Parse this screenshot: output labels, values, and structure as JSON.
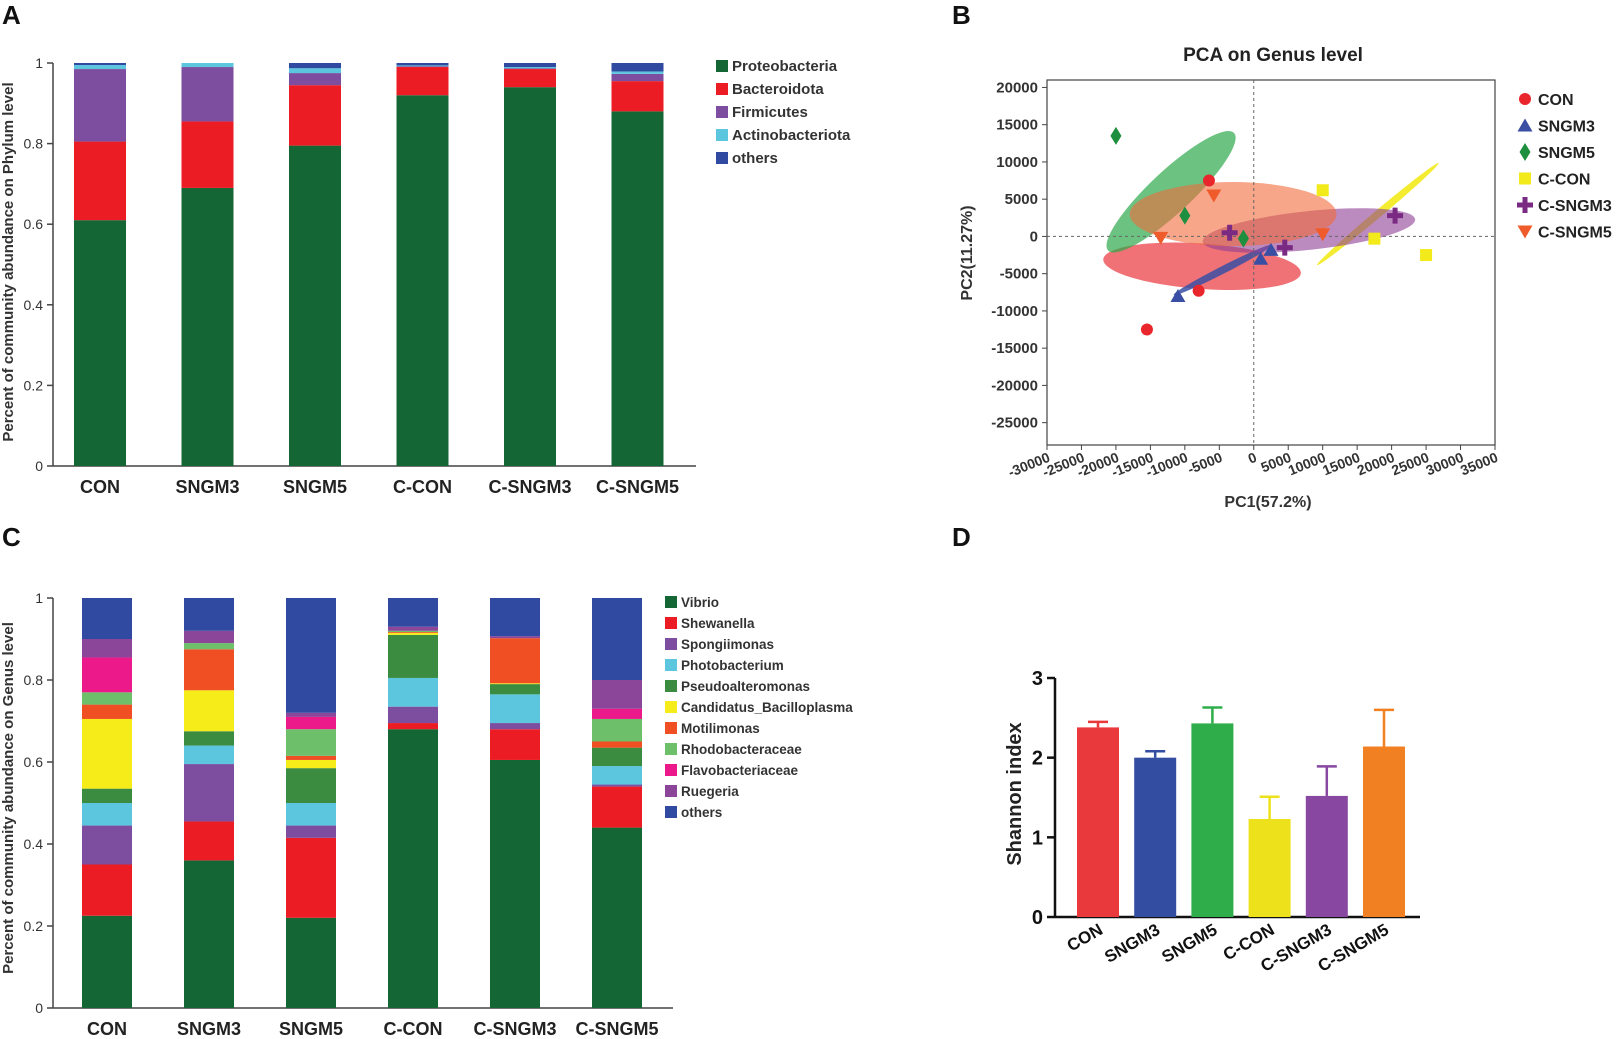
{
  "panel_labels": [
    "A",
    "B",
    "C",
    "D"
  ],
  "chart_data": [
    {
      "id": "A",
      "type": "bar",
      "stacked": true,
      "title": "",
      "xlabel": "",
      "ylabel": "Percent of community abundance on Phylum level",
      "ylim": [
        0,
        1
      ],
      "yticks": [
        "0",
        "0.2",
        "0.4",
        "0.6",
        "0.8",
        "1"
      ],
      "categories": [
        "CON",
        "SNGM3",
        "SNGM5",
        "C-CON",
        "C-SNGM3",
        "C-SNGM5"
      ],
      "legend_position": "right",
      "series": [
        {
          "name": "Proteobacteria",
          "color": "#146734",
          "values": [
            0.61,
            0.69,
            0.795,
            0.92,
            0.94,
            0.88
          ]
        },
        {
          "name": "Bacteroidota",
          "color": "#ec1c24",
          "values": [
            0.195,
            0.165,
            0.15,
            0.07,
            0.045,
            0.075
          ]
        },
        {
          "name": "Firmicutes",
          "color": "#7d4e9f",
          "values": [
            0.18,
            0.135,
            0.03,
            0.002,
            0.002,
            0.018
          ]
        },
        {
          "name": "Actinobacteriota",
          "color": "#5bc6de",
          "values": [
            0.01,
            0.01,
            0.012,
            0.002,
            0.003,
            0.006
          ]
        },
        {
          "name": "others",
          "color": "#2f4aa0",
          "values": [
            0.005,
            0.0,
            0.013,
            0.006,
            0.01,
            0.021
          ]
        }
      ]
    },
    {
      "id": "B",
      "type": "scatter",
      "title": "PCA on Genus level",
      "xlabel": "PC1(57.2%)",
      "ylabel": "PC2(11.27%)",
      "xlim": [
        -30000,
        35000
      ],
      "ylim": [
        -28000,
        21000
      ],
      "xticks": [
        -30000,
        -25000,
        -20000,
        -15000,
        -10000,
        -5000,
        0,
        5000,
        10000,
        15000,
        20000,
        25000,
        30000,
        35000
      ],
      "yticks": [
        -25000,
        -20000,
        -15000,
        -10000,
        -5000,
        0,
        5000,
        10000,
        15000,
        20000
      ],
      "legend_position": "right",
      "groups": [
        {
          "name": "CON",
          "color": "#e8262c",
          "marker": "circle",
          "points": [
            [
              -6500,
              7500
            ],
            [
              -8000,
              -7300
            ],
            [
              -15500,
              -12500
            ]
          ],
          "ellipse": {
            "cx": -7500,
            "cy": -4000,
            "rx": 3300,
            "ry": 13300,
            "angle": -86,
            "color": "#e8262c",
            "opacity": 0.65
          }
        },
        {
          "name": "SNGM3",
          "color": "#3a4fa3",
          "marker": "triangle",
          "points": [
            [
              -11000,
              -8000
            ],
            [
              1000,
              -3000
            ],
            [
              2500,
              -1800
            ]
          ],
          "ellipse": {
            "cx": -4500,
            "cy": -4500,
            "rx": 8000,
            "ry": 500,
            "angle": -27,
            "color": "#3a4fa3",
            "opacity": 0.85
          }
        },
        {
          "name": "SNGM5",
          "color": "#1d8f3e",
          "marker": "diamond",
          "points": [
            [
              -20000,
              13500
            ],
            [
              -10000,
              2800
            ],
            [
              -1500,
              -300
            ]
          ],
          "ellipse": {
            "cx": -12000,
            "cy": 6000,
            "rx": 12500,
            "ry": 2800,
            "angle": -43,
            "color": "#2ea84a",
            "opacity": 0.7
          }
        },
        {
          "name": "C-CON",
          "color": "#f2ea1a",
          "marker": "square",
          "points": [
            [
              10000,
              6200
            ],
            [
              17500,
              -300
            ],
            [
              25000,
              -2500
            ]
          ],
          "ellipse": {
            "cx": 18000,
            "cy": 3000,
            "rx": 11500,
            "ry": 500,
            "angle": -40,
            "color": "#f2ea1a",
            "opacity": 0.9
          }
        },
        {
          "name": "C-SNGM3",
          "color": "#7a2a82",
          "marker": "plus",
          "points": [
            [
              -3500,
              500
            ],
            [
              4500,
              -1500
            ],
            [
              20500,
              2800
            ]
          ],
          "ellipse": {
            "cx": 8000,
            "cy": 800,
            "rx": 15500,
            "ry": 2600,
            "angle": -6,
            "color": "#8e3d95",
            "opacity": 0.6
          }
        },
        {
          "name": "C-SNGM5",
          "color": "#f05b2b",
          "marker": "invtriangle",
          "points": [
            [
              -13500,
              -200
            ],
            [
              -5800,
              5500
            ],
            [
              10000,
              300
            ]
          ],
          "ellipse": {
            "cx": -3000,
            "cy": 3000,
            "rx": 15000,
            "ry": 4300,
            "angle": 0,
            "color": "#f26a3c",
            "opacity": 0.6
          }
        }
      ]
    },
    {
      "id": "C",
      "type": "bar",
      "stacked": true,
      "title": "",
      "xlabel": "",
      "ylabel": "Percent of community abundance on Genus level",
      "ylim": [
        0,
        1
      ],
      "yticks": [
        "0",
        "0.2",
        "0.4",
        "0.6",
        "0.8",
        "1"
      ],
      "categories": [
        "CON",
        "SNGM3",
        "SNGM5",
        "C-CON",
        "C-SNGM3",
        "C-SNGM5"
      ],
      "legend_position": "right",
      "series": [
        {
          "name": "Vibrio",
          "color": "#146734",
          "values": [
            0.225,
            0.36,
            0.22,
            0.68,
            0.605,
            0.44
          ]
        },
        {
          "name": "Shewanella",
          "color": "#ec1c24",
          "values": [
            0.125,
            0.095,
            0.195,
            0.015,
            0.075,
            0.1
          ]
        },
        {
          "name": "Spongiimonas",
          "color": "#7d4e9f",
          "values": [
            0.095,
            0.14,
            0.03,
            0.04,
            0.015,
            0.005
          ]
        },
        {
          "name": "Photobacterium",
          "color": "#5bc6de",
          "values": [
            0.055,
            0.045,
            0.055,
            0.07,
            0.07,
            0.045
          ]
        },
        {
          "name": "Pseudoalteromonas",
          "color": "#3b8c40",
          "values": [
            0.035,
            0.035,
            0.085,
            0.105,
            0.025,
            0.045
          ]
        },
        {
          "name": "Candidatus_Bacilloplasma",
          "color": "#f5ec19",
          "values": [
            0.17,
            0.1,
            0.02,
            0.005,
            0.002,
            0.0
          ]
        },
        {
          "name": "Motilimonas",
          "color": "#f04e23",
          "values": [
            0.035,
            0.1,
            0.01,
            0.002,
            0.11,
            0.015
          ]
        },
        {
          "name": "Rhodobacteraceae",
          "color": "#6ebf6a",
          "values": [
            0.03,
            0.015,
            0.065,
            0.003,
            0.0,
            0.055
          ]
        },
        {
          "name": "Flavobacteriaceae",
          "color": "#ec198b",
          "values": [
            0.085,
            0.0,
            0.03,
            0.0,
            0.0,
            0.025
          ]
        },
        {
          "name": "Ruegeria",
          "color": "#8b4599",
          "values": [
            0.045,
            0.03,
            0.01,
            0.01,
            0.005,
            0.07
          ]
        },
        {
          "name": "others",
          "color": "#2f4aa0",
          "values": [
            0.1,
            0.08,
            0.28,
            0.07,
            0.093,
            0.2
          ]
        }
      ]
    },
    {
      "id": "D",
      "type": "bar",
      "title": "",
      "xlabel": "",
      "ylabel": "Shannon index",
      "ylim": [
        0,
        3
      ],
      "yticks": [
        "0",
        "1",
        "2",
        "3"
      ],
      "categories": [
        "CON",
        "SNGM3",
        "SNGM5",
        "C-CON",
        "C-SNGM3",
        "C-SNGM5"
      ],
      "values": [
        2.38,
        2.0,
        2.43,
        1.23,
        1.52,
        2.14
      ],
      "errors": [
        0.07,
        0.08,
        0.2,
        0.28,
        0.37,
        0.46
      ],
      "colors": [
        "#e9393d",
        "#334ea1",
        "#2fad4a",
        "#ece11a",
        "#8847a0",
        "#f08022"
      ]
    }
  ]
}
